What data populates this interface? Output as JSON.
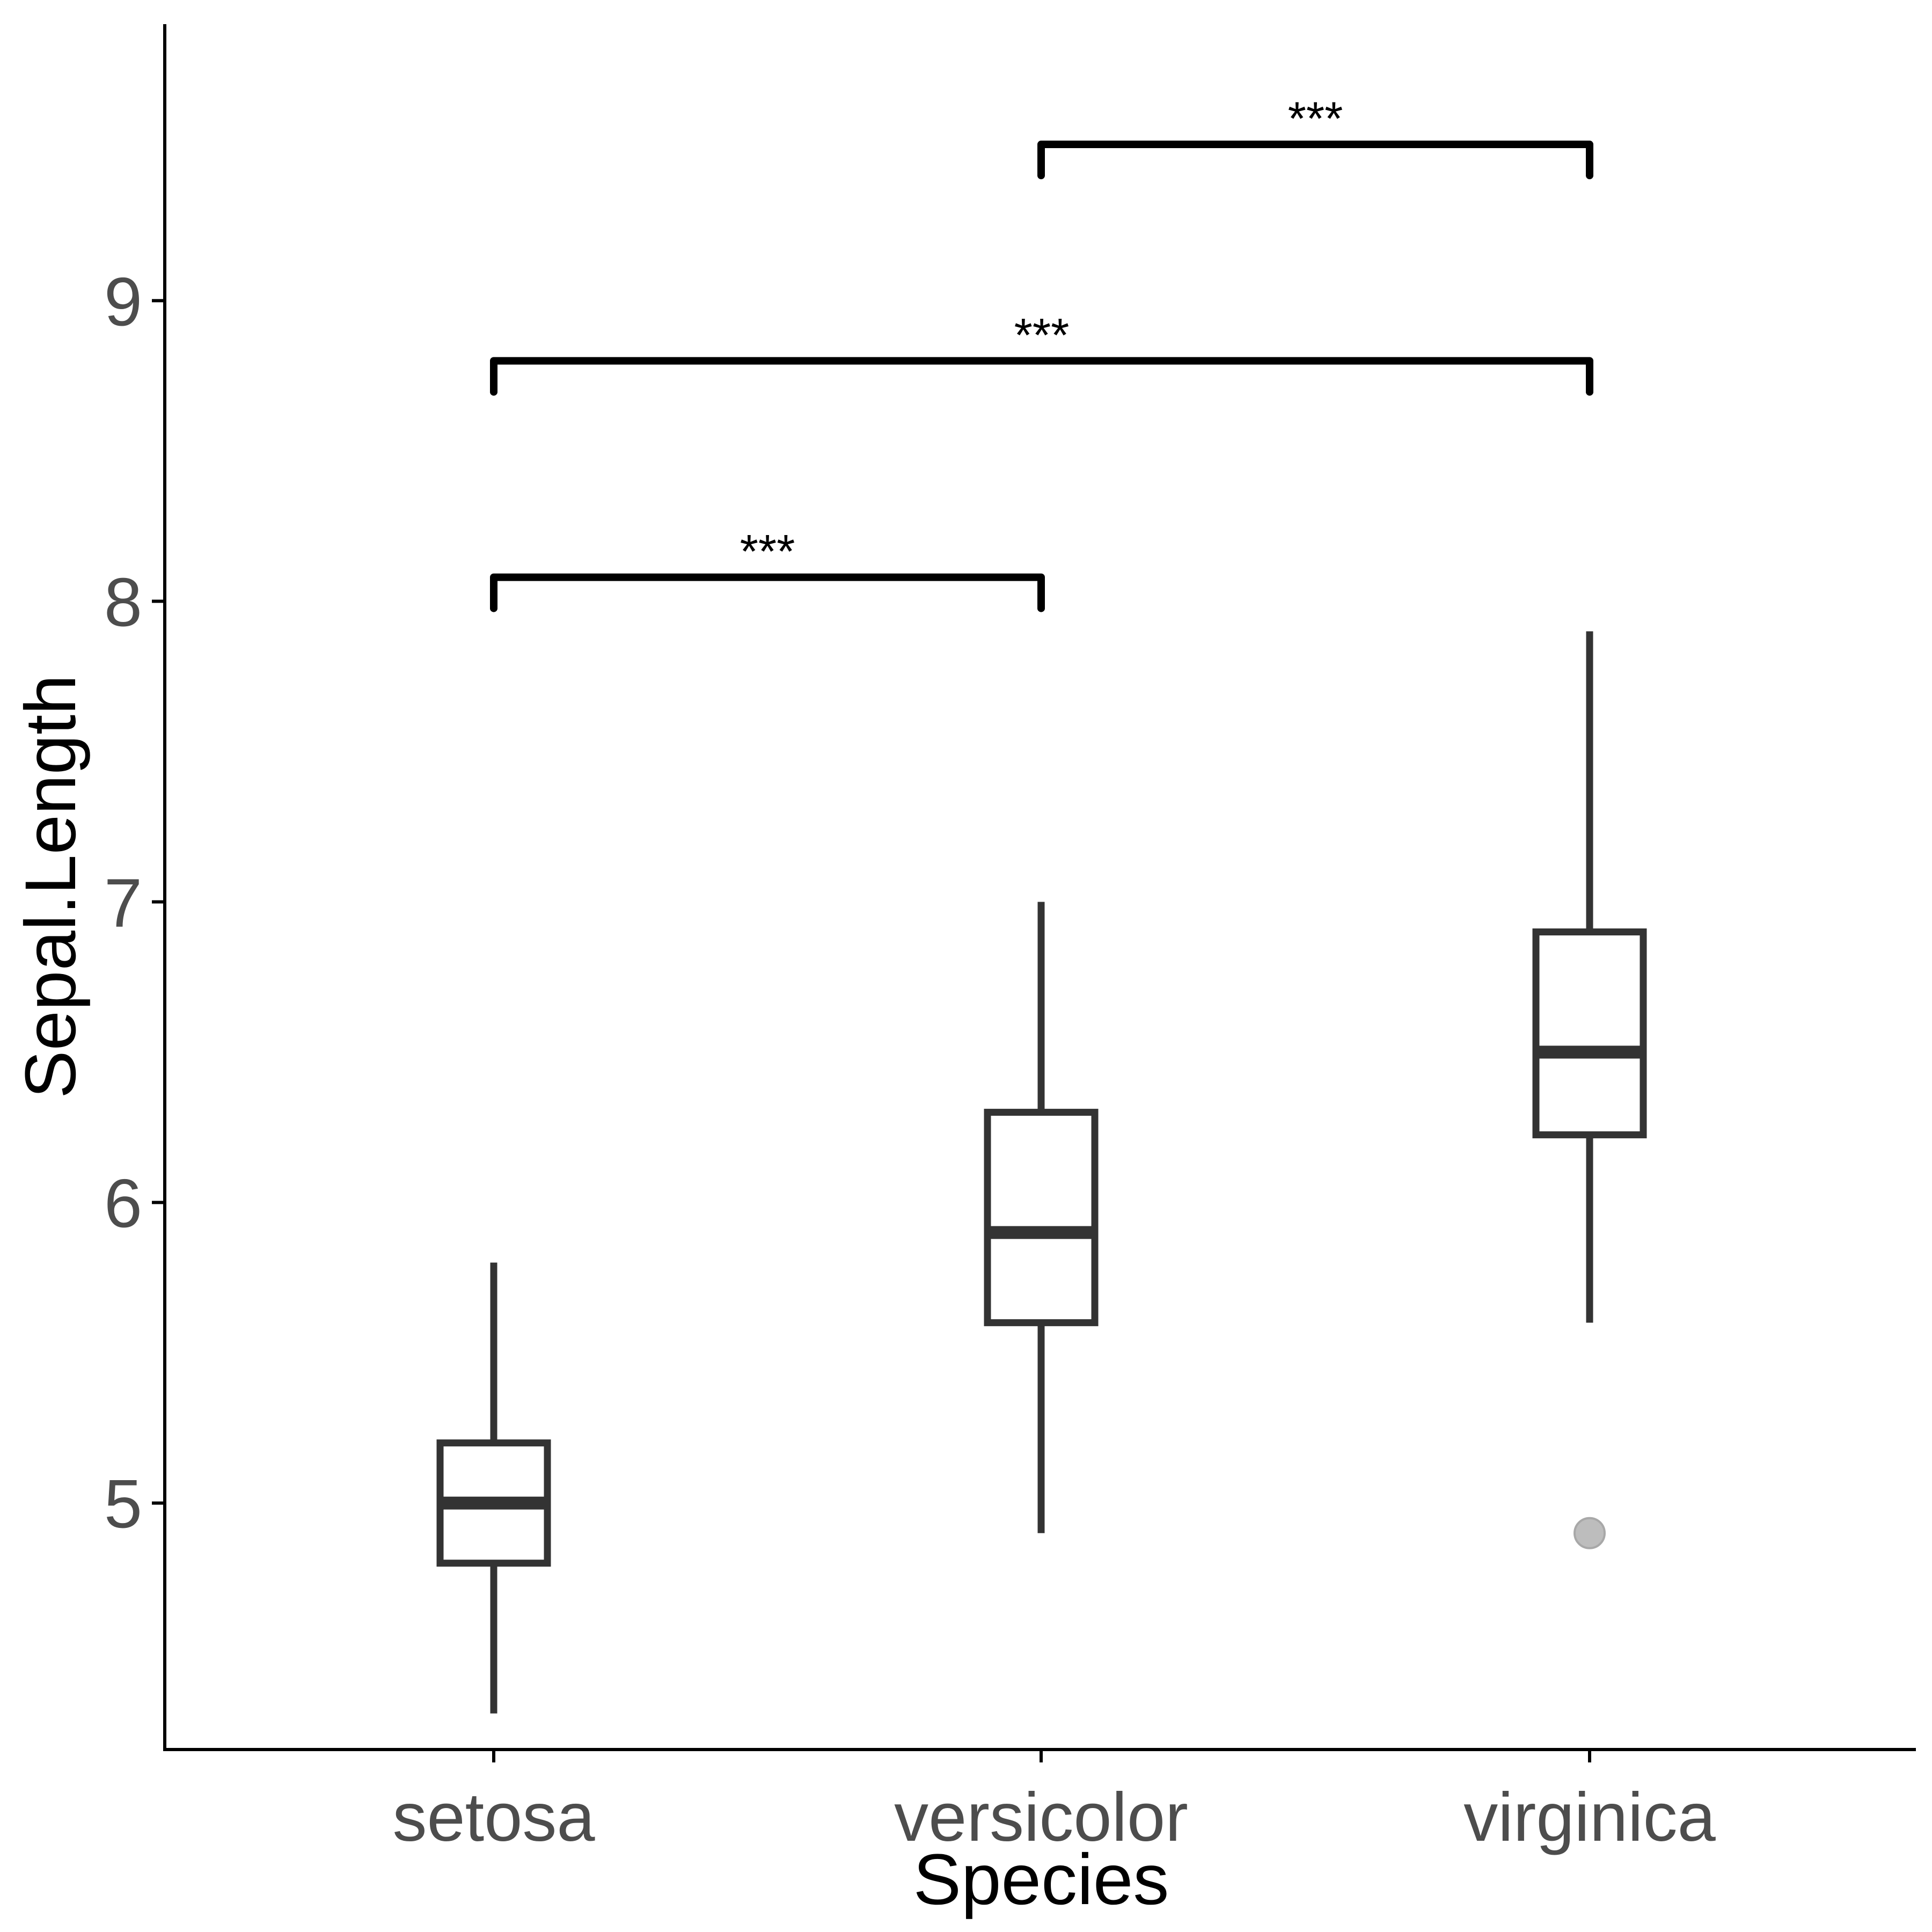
{
  "chart_data": {
    "type": "boxplot",
    "xlabel": "Species",
    "ylabel": "Sepal.Length",
    "categories": [
      "setosa",
      "versicolor",
      "virginica"
    ],
    "ylim": [
      4.18,
      9.92
    ],
    "yticks": [
      5,
      6,
      7,
      8,
      9
    ],
    "ytick_labels": [
      "5",
      "6",
      "7",
      "8",
      "9"
    ],
    "grid": false,
    "legend": "none",
    "boxes": [
      {
        "category": "setosa",
        "whisker_low": 4.3,
        "q1": 4.8,
        "median": 5.0,
        "q3": 5.2,
        "whisker_high": 5.8,
        "outliers": []
      },
      {
        "category": "versicolor",
        "whisker_low": 4.9,
        "q1": 5.6,
        "median": 5.9,
        "q3": 6.3,
        "whisker_high": 7.0,
        "outliers": []
      },
      {
        "category": "virginica",
        "whisker_low": 5.6,
        "q1": 6.225,
        "median": 6.5,
        "q3": 6.9,
        "whisker_high": 7.9,
        "outliers": [
          4.9
        ]
      }
    ],
    "comparisons": [
      {
        "from": "setosa",
        "to": "versicolor",
        "y": 8.08,
        "label": "***"
      },
      {
        "from": "setosa",
        "to": "virginica",
        "y": 8.8,
        "label": "***"
      },
      {
        "from": "versicolor",
        "to": "virginica",
        "y": 9.52,
        "label": "***"
      }
    ],
    "colors": {
      "box_stroke": "#333333",
      "box_fill": "#ffffff",
      "axis": "#000000",
      "tick_text": "#4d4d4d",
      "title_text": "#000000",
      "outlier": "#bdbdbd"
    }
  }
}
